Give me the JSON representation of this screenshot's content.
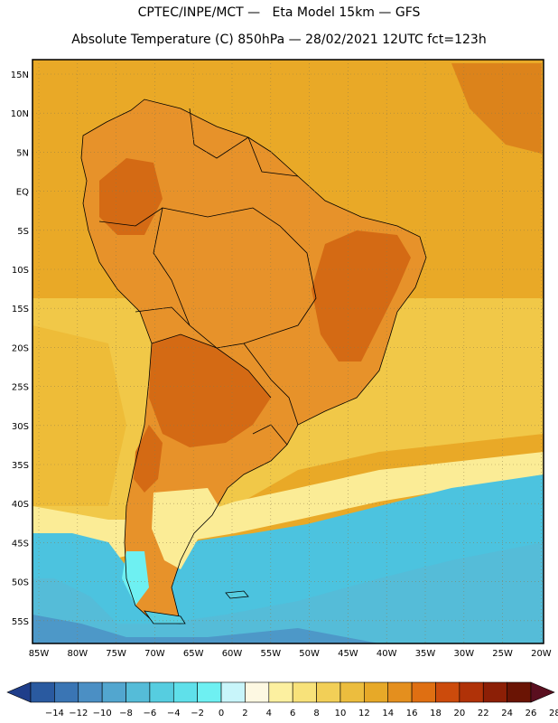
{
  "header": {
    "line1": "CPTEC/INPE/MCT —   Eta Model 15km — GFS",
    "line2": "Absolute Temperature (C) 850hPa — 28/02/2021 12UTC fct=123h"
  },
  "axes": {
    "lat_labels": [
      "15N",
      "10N",
      "5N",
      "EQ",
      "5S",
      "10S",
      "15S",
      "20S",
      "25S",
      "30S",
      "35S",
      "40S",
      "45S",
      "50S",
      "55S"
    ],
    "lon_labels": [
      "85W",
      "80W",
      "75W",
      "70W",
      "65W",
      "60W",
      "55W",
      "50W",
      "45W",
      "40W",
      "35W",
      "30W",
      "25W",
      "20W"
    ]
  },
  "colorbar": {
    "labels": [
      "-14",
      "-12",
      "-10",
      "-8",
      "-6",
      "-4",
      "-2",
      "0",
      "2",
      "4",
      "6",
      "8",
      "10",
      "12",
      "14",
      "16",
      "18",
      "20",
      "22",
      "24",
      "26",
      "28"
    ],
    "colors": [
      "#1f3e8a",
      "#2a5aa0",
      "#3a75b4",
      "#4b8fc4",
      "#52a6cf",
      "#55bcd8",
      "#56cde0",
      "#5fe0ea",
      "#6ef0f2",
      "#c8f5fa",
      "#fdf8e2",
      "#fcf0a0",
      "#f8e27a",
      "#f2cf57",
      "#ecbd3e",
      "#e7a928",
      "#e48f1e",
      "#df6f12",
      "#cc4b0c",
      "#b03208",
      "#8c1f06",
      "#6a1404",
      "#5a0f1f"
    ]
  },
  "map": {
    "ocean_color": "#e9a927",
    "land_color": "#e7922a",
    "hot_color": "#d46a14",
    "cool_ocean_color": "#f3cc54",
    "cold_color": "#4cc3df"
  }
}
